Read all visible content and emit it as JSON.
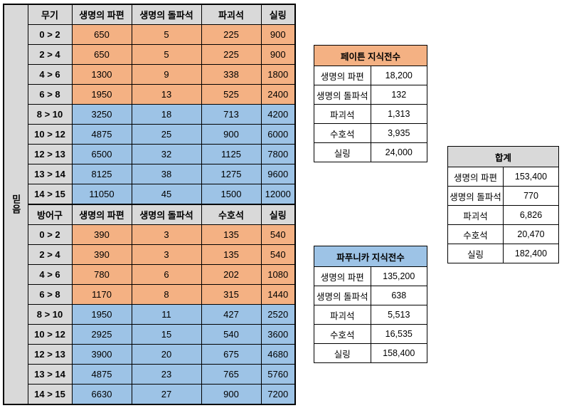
{
  "main": {
    "side_label": "믿음",
    "weapon": {
      "headers": [
        "무기",
        "생명의 파편",
        "생명의 돌파석",
        "파괴석",
        "실링"
      ],
      "rows": [
        {
          "level": "0 > 2",
          "values": [
            "650",
            "5",
            "225",
            "900"
          ],
          "tone": "o"
        },
        {
          "level": "2 > 4",
          "values": [
            "650",
            "5",
            "225",
            "900"
          ],
          "tone": "o"
        },
        {
          "level": "4 > 6",
          "values": [
            "1300",
            "9",
            "338",
            "1800"
          ],
          "tone": "o"
        },
        {
          "level": "6 > 8",
          "values": [
            "1950",
            "13",
            "525",
            "2400"
          ],
          "tone": "o"
        },
        {
          "level": "8 > 10",
          "values": [
            "3250",
            "18",
            "713",
            "4200"
          ],
          "tone": "b"
        },
        {
          "level": "10 > 12",
          "values": [
            "4875",
            "25",
            "900",
            "6000"
          ],
          "tone": "b"
        },
        {
          "level": "12 > 13",
          "values": [
            "6500",
            "32",
            "1125",
            "7800"
          ],
          "tone": "b"
        },
        {
          "level": "13 > 14",
          "values": [
            "8125",
            "38",
            "1275",
            "9600"
          ],
          "tone": "b"
        },
        {
          "level": "14 > 15",
          "values": [
            "11050",
            "45",
            "1500",
            "12000"
          ],
          "tone": "b"
        }
      ]
    },
    "armor": {
      "headers": [
        "방어구",
        "생명의 파편",
        "생명의 돌파석",
        "수호석",
        "실링"
      ],
      "rows": [
        {
          "level": "0 > 2",
          "values": [
            "390",
            "3",
            "135",
            "540"
          ],
          "tone": "o"
        },
        {
          "level": "2 > 4",
          "values": [
            "390",
            "3",
            "135",
            "540"
          ],
          "tone": "o"
        },
        {
          "level": "4 > 6",
          "values": [
            "780",
            "6",
            "202",
            "1080"
          ],
          "tone": "o"
        },
        {
          "level": "6 > 8",
          "values": [
            "1170",
            "8",
            "315",
            "1440"
          ],
          "tone": "o"
        },
        {
          "level": "8 > 10",
          "values": [
            "1950",
            "11",
            "427",
            "2520"
          ],
          "tone": "b"
        },
        {
          "level": "10 > 12",
          "values": [
            "2925",
            "15",
            "540",
            "3600"
          ],
          "tone": "b"
        },
        {
          "level": "12 > 13",
          "values": [
            "3900",
            "20",
            "675",
            "4680"
          ],
          "tone": "b"
        },
        {
          "level": "13 > 14",
          "values": [
            "4875",
            "23",
            "765",
            "5760"
          ],
          "tone": "b"
        },
        {
          "level": "14 > 15",
          "values": [
            "6630",
            "27",
            "900",
            "7200"
          ],
          "tone": "b"
        }
      ]
    }
  },
  "colors": {
    "orange": "#f4b183",
    "blue": "#9dc3e6",
    "gray": "#d9d9d9"
  },
  "peiton": {
    "title": "페이튼 지식전수",
    "rows": [
      {
        "label": "생명의 파편",
        "value": "18,200"
      },
      {
        "label": "생명의 돌파석",
        "value": "132"
      },
      {
        "label": "파괴석",
        "value": "1,313"
      },
      {
        "label": "수호석",
        "value": "3,935"
      },
      {
        "label": "실링",
        "value": "24,000"
      }
    ]
  },
  "pafnika": {
    "title": "파푸니카 지식전수",
    "rows": [
      {
        "label": "생명의 파편",
        "value": "135,200"
      },
      {
        "label": "생명의 돌파석",
        "value": "638"
      },
      {
        "label": "파괴석",
        "value": "5,513"
      },
      {
        "label": "수호석",
        "value": "16,535"
      },
      {
        "label": "실링",
        "value": "158,400"
      }
    ]
  },
  "total": {
    "title": "합계",
    "rows": [
      {
        "label": "생명의 파편",
        "value": "153,400"
      },
      {
        "label": "생명의 돌파석",
        "value": "770"
      },
      {
        "label": "파괴석",
        "value": "6,826"
      },
      {
        "label": "수호석",
        "value": "20,470"
      },
      {
        "label": "실링",
        "value": "182,400"
      }
    ]
  }
}
